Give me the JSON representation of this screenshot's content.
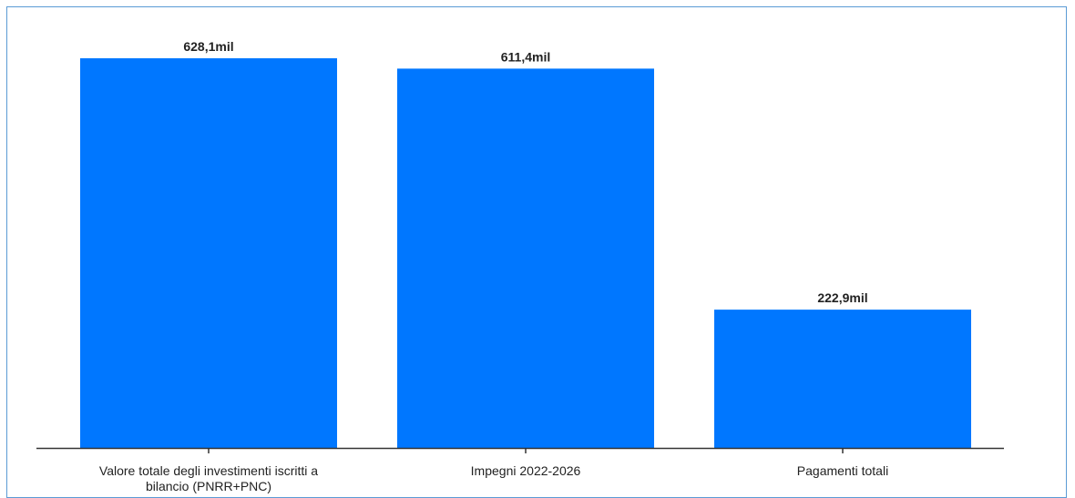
{
  "chart_data": {
    "type": "bar",
    "categories": [
      [
        "Valore totale degli investimenti iscritti a",
        "bilancio (PNRR+PNC)"
      ],
      [
        "Impegni 2022-2026"
      ],
      [
        "Pagamenti totali"
      ]
    ],
    "values": [
      628.1,
      611.4,
      222.9
    ],
    "value_labels": [
      "628,1mil",
      "611,4mil",
      "222,9mil"
    ],
    "ylim": [
      0,
      628.1
    ],
    "grid": false,
    "legend": "none",
    "colors": {
      "bar": "#0077ff",
      "axis": "#333333",
      "frame": "#5b9bd5"
    }
  }
}
